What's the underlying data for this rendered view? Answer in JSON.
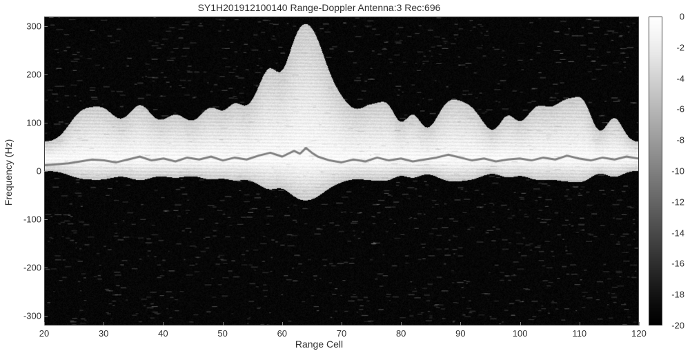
{
  "chart": {
    "type": "heatmap",
    "title": "SY1H201912100140 Range-Doppler Antenna:3 Rec:696",
    "xlabel": "Range Cell",
    "ylabel": "Frequency (Hz)",
    "title_fontsize": 14,
    "label_fontsize": 14,
    "tick_fontsize": 13,
    "xlim": [
      20,
      120
    ],
    "ylim": [
      -320,
      320
    ],
    "xticks": [
      20,
      30,
      40,
      50,
      60,
      70,
      80,
      90,
      100,
      110,
      120
    ],
    "yticks": [
      -300,
      -200,
      -100,
      0,
      100,
      200,
      300
    ],
    "background_color": "#000000",
    "figure_bg": "#ffffff",
    "colormap": [
      "#ffffff",
      "#f5f5f5",
      "#e8e8e8",
      "#d8d8d8",
      "#c8c8c8",
      "#b8b8b8",
      "#a8a8a8",
      "#989898",
      "#888888",
      "#787878",
      "#686868",
      "#585858",
      "#484848",
      "#383838",
      "#282828",
      "#181818",
      "#0a0a0a",
      "#000000"
    ],
    "clim": [
      -20,
      0
    ],
    "cticks": [
      0,
      -2,
      -4,
      -6,
      -8,
      -10,
      -12,
      -14,
      -16,
      -18,
      -20
    ],
    "band_center_freq": 25,
    "band_half_width": 35,
    "band_peaks": [
      {
        "x": 26,
        "h": 55,
        "w": 3
      },
      {
        "x": 30,
        "h": 60,
        "w": 3
      },
      {
        "x": 36,
        "h": 75,
        "w": 3
      },
      {
        "x": 42,
        "h": 55,
        "w": 3
      },
      {
        "x": 48,
        "h": 70,
        "w": 3
      },
      {
        "x": 52,
        "h": 55,
        "w": 2
      },
      {
        "x": 56,
        "h": 85,
        "w": 3
      },
      {
        "x": 58,
        "h": 70,
        "w": 2
      },
      {
        "x": 62,
        "h": 95,
        "w": 3
      },
      {
        "x": 64,
        "h": 130,
        "w": 4
      },
      {
        "x": 66,
        "h": 85,
        "w": 3
      },
      {
        "x": 70,
        "h": 65,
        "w": 3
      },
      {
        "x": 75,
        "h": 70,
        "w": 3
      },
      {
        "x": 78,
        "h": 50,
        "w": 2
      },
      {
        "x": 82,
        "h": 55,
        "w": 2
      },
      {
        "x": 88,
        "h": 75,
        "w": 3
      },
      {
        "x": 92,
        "h": 60,
        "w": 3
      },
      {
        "x": 98,
        "h": 50,
        "w": 2
      },
      {
        "x": 103,
        "h": 70,
        "w": 3
      },
      {
        "x": 108,
        "h": 80,
        "w": 3
      },
      {
        "x": 111,
        "h": 55,
        "w": 2
      },
      {
        "x": 116,
        "h": 50,
        "w": 2
      }
    ],
    "overlay_line": {
      "color": "#808080",
      "width": 3,
      "points": [
        [
          20,
          12
        ],
        [
          22,
          14
        ],
        [
          24,
          16
        ],
        [
          26,
          20
        ],
        [
          28,
          24
        ],
        [
          30,
          22
        ],
        [
          32,
          18
        ],
        [
          34,
          24
        ],
        [
          36,
          30
        ],
        [
          38,
          22
        ],
        [
          40,
          26
        ],
        [
          42,
          20
        ],
        [
          44,
          28
        ],
        [
          46,
          24
        ],
        [
          48,
          30
        ],
        [
          50,
          22
        ],
        [
          52,
          28
        ],
        [
          54,
          24
        ],
        [
          56,
          32
        ],
        [
          58,
          38
        ],
        [
          60,
          30
        ],
        [
          62,
          42
        ],
        [
          63,
          36
        ],
        [
          64,
          48
        ],
        [
          65,
          38
        ],
        [
          66,
          30
        ],
        [
          68,
          22
        ],
        [
          70,
          18
        ],
        [
          72,
          24
        ],
        [
          74,
          20
        ],
        [
          76,
          28
        ],
        [
          78,
          22
        ],
        [
          80,
          26
        ],
        [
          82,
          20
        ],
        [
          84,
          24
        ],
        [
          86,
          28
        ],
        [
          88,
          34
        ],
        [
          90,
          28
        ],
        [
          92,
          22
        ],
        [
          94,
          26
        ],
        [
          96,
          20
        ],
        [
          98,
          24
        ],
        [
          100,
          26
        ],
        [
          102,
          22
        ],
        [
          104,
          28
        ],
        [
          106,
          24
        ],
        [
          108,
          32
        ],
        [
          110,
          26
        ],
        [
          112,
          22
        ],
        [
          114,
          28
        ],
        [
          116,
          24
        ],
        [
          118,
          30
        ],
        [
          120,
          26
        ]
      ]
    },
    "noise_speckle_count": 1400,
    "noise_speckle_intensity": 0.35
  }
}
